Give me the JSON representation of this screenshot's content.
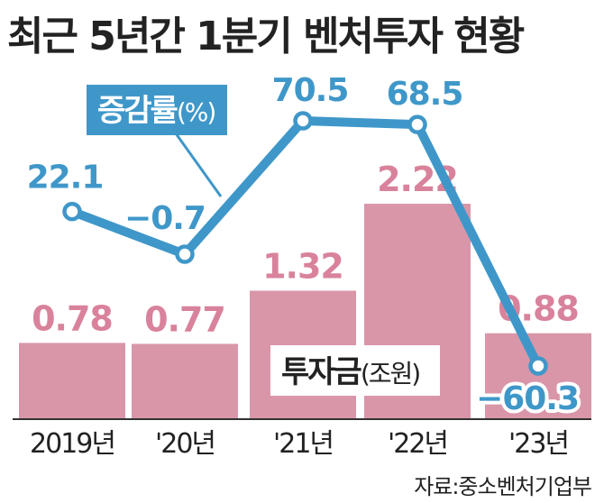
{
  "title": "최근 5년간 1분기 벤처투자 현황",
  "source": "자료:중소벤처기업부",
  "colors": {
    "bar": "#d996a9",
    "line": "#3f97c9",
    "bar_label": "#d9829b"
  },
  "chart_data": {
    "type": "bar",
    "title": "최근 5년간 1분기 벤처투자 현황",
    "categories": [
      "2019년",
      "'20년",
      "'21년",
      "'22년",
      "'23년"
    ],
    "series": [
      {
        "name": "투자금(조원)",
        "type": "bar",
        "values": [
          0.78,
          0.77,
          1.32,
          2.22,
          0.88
        ]
      },
      {
        "name": "증감률(%)",
        "type": "line",
        "values": [
          22.1,
          -0.7,
          70.5,
          68.5,
          -60.3
        ]
      }
    ],
    "bar_labels": [
      "0.78",
      "0.77",
      "1.32",
      "2.22",
      "0.88"
    ],
    "line_labels": [
      "22.1",
      "−0.7",
      "70.5",
      "68.5",
      "−60.3"
    ],
    "bar_ylim": [
      0,
      2.22
    ],
    "line_ylim": [
      -60.3,
      70.5
    ],
    "grid": false,
    "legend": {
      "line": {
        "text": "증감률",
        "unit": "(%)"
      },
      "bar": {
        "text": "투자금",
        "unit": "(조원)"
      }
    }
  }
}
